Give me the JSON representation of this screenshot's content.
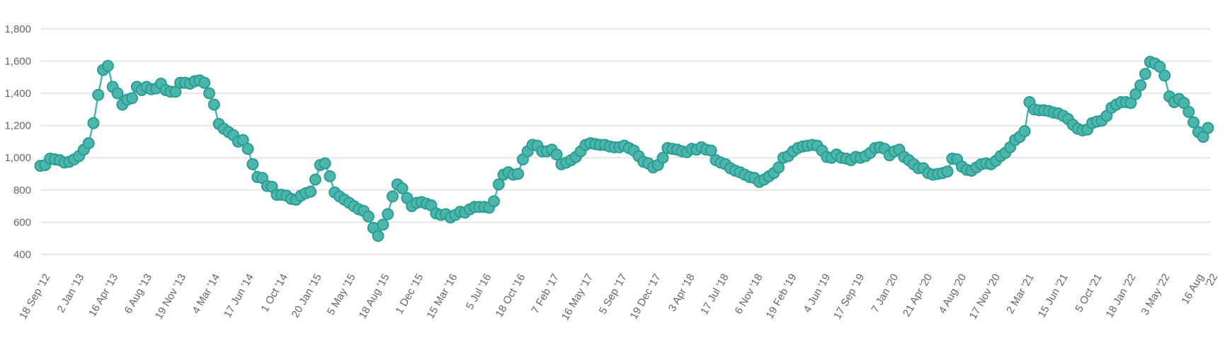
{
  "chart_data": {
    "type": "line",
    "title": "",
    "xlabel": "",
    "ylabel": "",
    "ylim": [
      400,
      1800
    ],
    "yticks": [
      "400",
      "600",
      "800",
      "1,000",
      "1,200",
      "1,400",
      "1,600",
      "1,800"
    ],
    "x_tick_labels": [
      "18 Sep '12",
      "2 Jan '13",
      "16 Apr '13",
      "6 Aug '13",
      "19 Nov '13",
      "4 Mar '14",
      "17 Jun '14",
      "1 Oct '14",
      "20 Jan '15",
      "5 May '15",
      "18 Aug '15",
      "1 Dec '15",
      "15 Mar '16",
      "5 Jul '16",
      "18 Oct '16",
      "7 Feb '17",
      "16 May '17",
      "5 Sep '17",
      "19 Dec '17",
      "3 Apr '18",
      "17 Jul '18",
      "6 Nov '18",
      "19 Feb '19",
      "4 Jun '19",
      "17 Sep '19",
      "7 Jan '20",
      "21 Apr '20",
      "4 Aug '20",
      "17 Nov '20",
      "2 Mar '21",
      "15 Jun '21",
      "5 Oct '21",
      "18 Jan '22",
      "3 May '22",
      "16 Aug '22"
    ],
    "grid": true,
    "legend": "none",
    "colors": {
      "line": "#4db6ac",
      "marker_fill": "#4db6ac",
      "marker_stroke": "#2a9d94",
      "grid": "#e6e6e6",
      "text": "#666666"
    },
    "series": [
      {
        "values": [
          950,
          955,
          995,
          990,
          985,
          970,
          975,
          990,
          1010,
          1050,
          1090,
          1215,
          1390,
          1545,
          1570,
          1440,
          1400,
          1330,
          1360,
          1370,
          1440,
          1420,
          1440,
          1425,
          1430,
          1460,
          1420,
          1410,
          1410,
          1465,
          1465,
          1460,
          1475,
          1480,
          1465,
          1400,
          1330,
          1210,
          1180,
          1160,
          1140,
          1100,
          1110,
          1055,
          960,
          880,
          875,
          825,
          820,
          770,
          770,
          765,
          745,
          740,
          765,
          780,
          790,
          865,
          955,
          965,
          885,
          785,
          760,
          740,
          720,
          700,
          680,
          670,
          635,
          565,
          515,
          585,
          650,
          760,
          835,
          810,
          750,
          700,
          720,
          725,
          715,
          705,
          655,
          645,
          650,
          630,
          645,
          665,
          660,
          680,
          695,
          695,
          695,
          690,
          730,
          835,
          895,
          910,
          895,
          900,
          990,
          1040,
          1080,
          1075,
          1040,
          1040,
          1050,
          1020,
          960,
          970,
          985,
          1005,
          1040,
          1080,
          1090,
          1085,
          1080,
          1080,
          1070,
          1065,
          1065,
          1075,
          1060,
          1045,
          1010,
          975,
          965,
          940,
          955,
          1000,
          1060,
          1055,
          1050,
          1040,
          1035,
          1055,
          1050,
          1065,
          1050,
          1045,
          985,
          970,
          960,
          935,
          920,
          910,
          895,
          880,
          875,
          850,
          865,
          885,
          905,
          940,
          1000,
          1010,
          1040,
          1060,
          1070,
          1075,
          1080,
          1075,
          1045,
          1005,
          1000,
          1020,
          1000,
          995,
          985,
          1005,
          1000,
          1010,
          1030,
          1060,
          1065,
          1055,
          1015,
          1040,
          1050,
          1005,
          985,
          960,
          935,
          935,
          905,
          895,
          900,
          905,
          915,
          995,
          990,
          945,
          925,
          920,
          940,
          960,
          965,
          960,
          980,
          1010,
          1030,
          1065,
          1110,
          1130,
          1165,
          1345,
          1300,
          1295,
          1295,
          1290,
          1280,
          1275,
          1260,
          1240,
          1205,
          1180,
          1170,
          1175,
          1215,
          1225,
          1230,
          1260,
          1310,
          1330,
          1345,
          1345,
          1340,
          1395,
          1450,
          1520,
          1595,
          1585,
          1565,
          1510,
          1380,
          1345,
          1365,
          1340,
          1285,
          1220,
          1160,
          1130,
          1185
        ]
      }
    ]
  }
}
